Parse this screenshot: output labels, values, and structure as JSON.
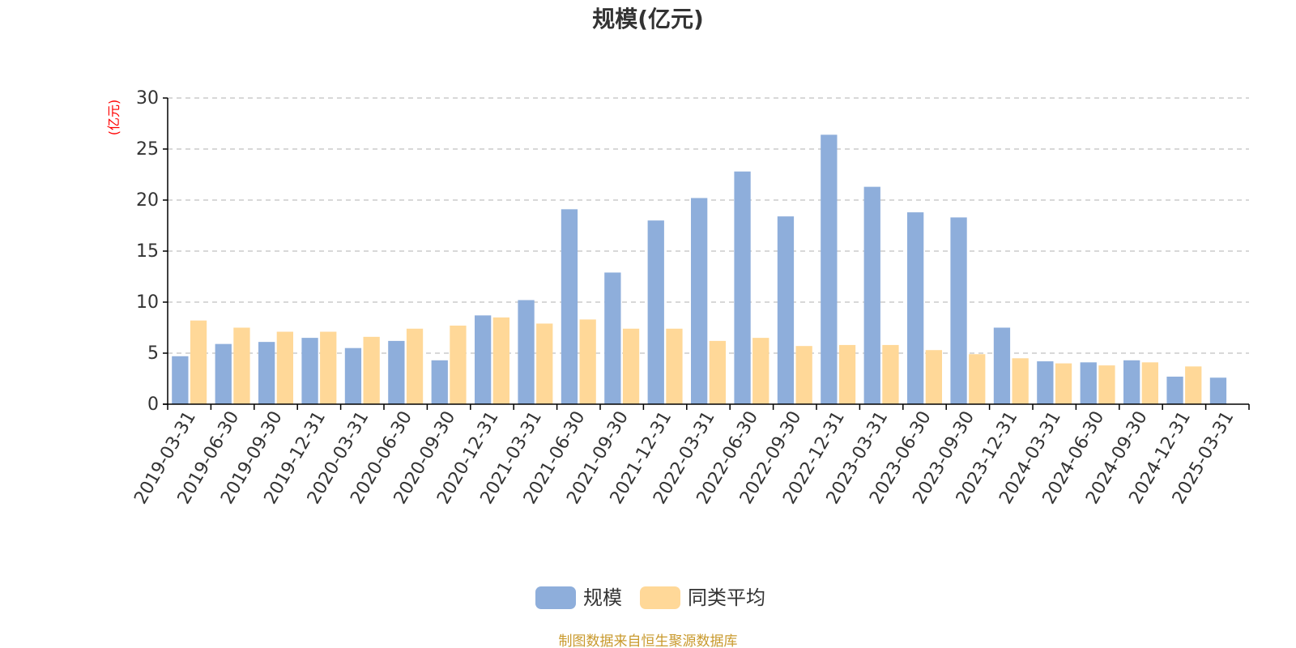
{
  "chart_data": {
    "type": "bar",
    "title": "规模(亿元)",
    "ylabel": "(亿元)",
    "ylim": [
      0,
      30
    ],
    "yticks": [
      0,
      5,
      10,
      15,
      20,
      25,
      30
    ],
    "grid": "dashed-horizontal",
    "legend_position": "bottom-center",
    "categories": [
      "2019-03-31",
      "2019-06-30",
      "2019-09-30",
      "2019-12-31",
      "2020-03-31",
      "2020-06-30",
      "2020-09-30",
      "2020-12-31",
      "2021-03-31",
      "2021-06-30",
      "2021-09-30",
      "2021-12-31",
      "2022-03-31",
      "2022-06-30",
      "2022-09-30",
      "2022-12-31",
      "2023-03-31",
      "2023-06-30",
      "2023-09-30",
      "2023-12-31",
      "2024-03-31",
      "2024-06-30",
      "2024-09-30",
      "2024-12-31",
      "2025-03-31"
    ],
    "series": [
      {
        "name": "规模",
        "color": "#8eaedb",
        "values": [
          4.7,
          5.9,
          6.1,
          6.5,
          5.5,
          6.2,
          4.3,
          8.7,
          10.2,
          19.1,
          12.9,
          18.0,
          20.2,
          22.8,
          18.4,
          26.4,
          21.3,
          18.8,
          18.3,
          7.5,
          4.2,
          4.1,
          4.3,
          2.7,
          2.6
        ]
      },
      {
        "name": "同类平均",
        "color": "#ffd898",
        "values": [
          8.2,
          7.5,
          7.1,
          7.1,
          6.6,
          7.4,
          7.7,
          8.5,
          7.9,
          8.3,
          7.4,
          7.4,
          6.2,
          6.5,
          5.7,
          5.8,
          5.8,
          5.3,
          4.9,
          4.5,
          4.0,
          3.8,
          4.1,
          3.7,
          null
        ]
      }
    ],
    "colors": {
      "axis": "#000000",
      "grid": "#cccccc",
      "text": "#333333",
      "ylabel": "#ff0000",
      "source": "#c99a2e"
    },
    "source_note": "制图数据来自恒生聚源数据库"
  }
}
